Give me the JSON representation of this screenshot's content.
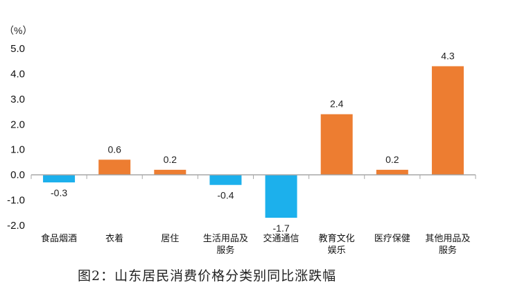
{
  "chart_data": {
    "type": "bar",
    "title": "图2：山东居民消费价格分类别同比涨跌幅",
    "unit_label": "（%）",
    "categories": [
      [
        "食品烟酒"
      ],
      [
        "衣着"
      ],
      [
        "居住"
      ],
      [
        "生活用品及",
        "服务"
      ],
      [
        "交通通信"
      ],
      [
        "教育文化",
        "娱乐"
      ],
      [
        "医疗保健"
      ],
      [
        "其他用品及",
        "服务"
      ]
    ],
    "values": [
      -0.3,
      0.6,
      0.2,
      -0.4,
      -1.7,
      2.4,
      0.2,
      4.3
    ],
    "value_labels": [
      "-0.3",
      "0.6",
      "0.2",
      "-0.4",
      "-1.7",
      "2.4",
      "0.2",
      "4.3"
    ],
    "ylim": [
      -2.0,
      5.0
    ],
    "yticks": [
      "5.0",
      "4.0",
      "3.0",
      "2.0",
      "1.0",
      "0.0",
      "-1.0",
      "-2.0"
    ],
    "ytick_values": [
      5,
      4,
      3,
      2,
      1,
      0,
      -1,
      -2
    ],
    "grid": false,
    "colors": {
      "positive": "#ED7D31",
      "negative": "#1CB0EC",
      "axis": "#A6A6A6"
    }
  }
}
